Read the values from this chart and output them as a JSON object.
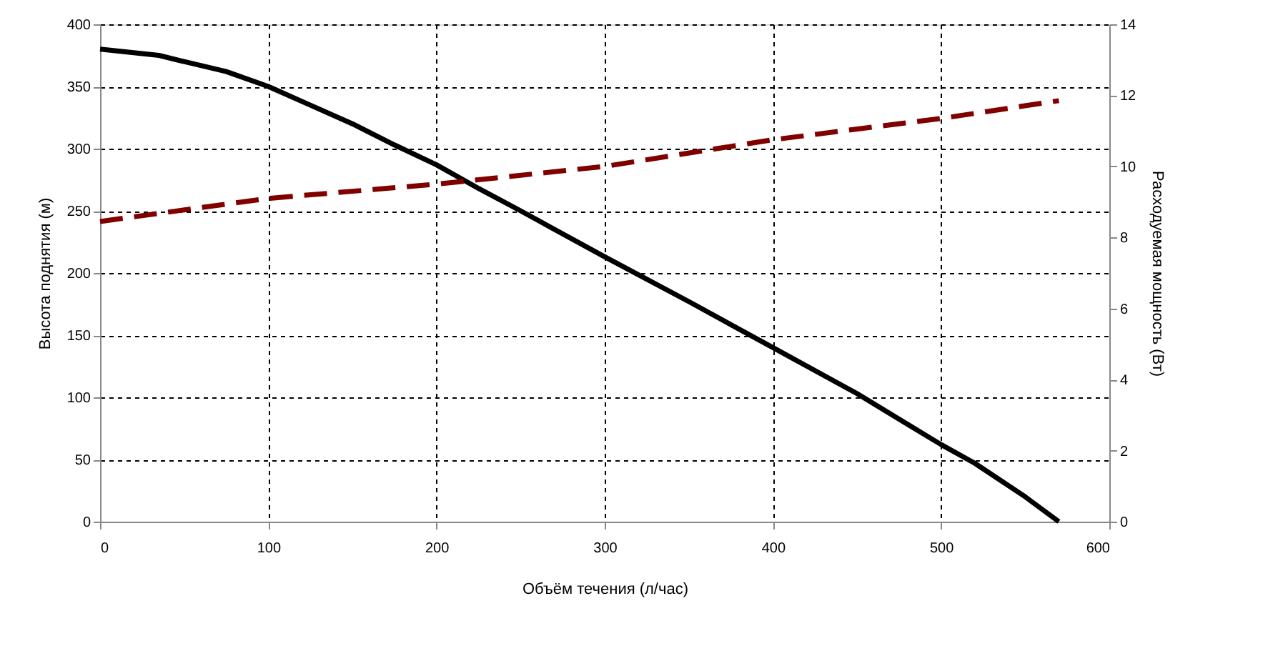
{
  "chart_data": {
    "type": "line",
    "xlabel": "Объём течения (л/час)",
    "ylabel": "Высота поднятия (м)",
    "y2label": "Расходуемая мощность (Вт)",
    "xlim": [
      0,
      600
    ],
    "xticks": [
      0,
      100,
      200,
      300,
      400,
      500,
      600
    ],
    "ylim": [
      0,
      400
    ],
    "yticks": [
      0,
      50,
      100,
      150,
      200,
      250,
      300,
      350,
      400
    ],
    "y2lim": [
      0,
      14
    ],
    "y2ticks": [
      0,
      2,
      4,
      6,
      8,
      10,
      12,
      14
    ],
    "grid": true,
    "series": [
      {
        "color": "#000000",
        "line_style": "solid",
        "x": [
          0,
          35,
          50,
          75,
          100,
          125,
          150,
          175,
          200,
          225,
          250,
          300,
          350,
          400,
          450,
          500,
          520,
          550,
          570
        ],
        "values": [
          380,
          375,
          370,
          362,
          350,
          335,
          320,
          303,
          287,
          268,
          250,
          213,
          177,
          140,
          103,
          62,
          47,
          20,
          0
        ]
      },
      {
        "color": "#800000",
        "line_style": "dashed",
        "axis": "y2",
        "x": [
          0,
          100,
          200,
          300,
          400,
          500,
          570
        ],
        "values": [
          8.45,
          9.1,
          9.5,
          10.0,
          10.75,
          11.35,
          11.85
        ]
      }
    ]
  }
}
